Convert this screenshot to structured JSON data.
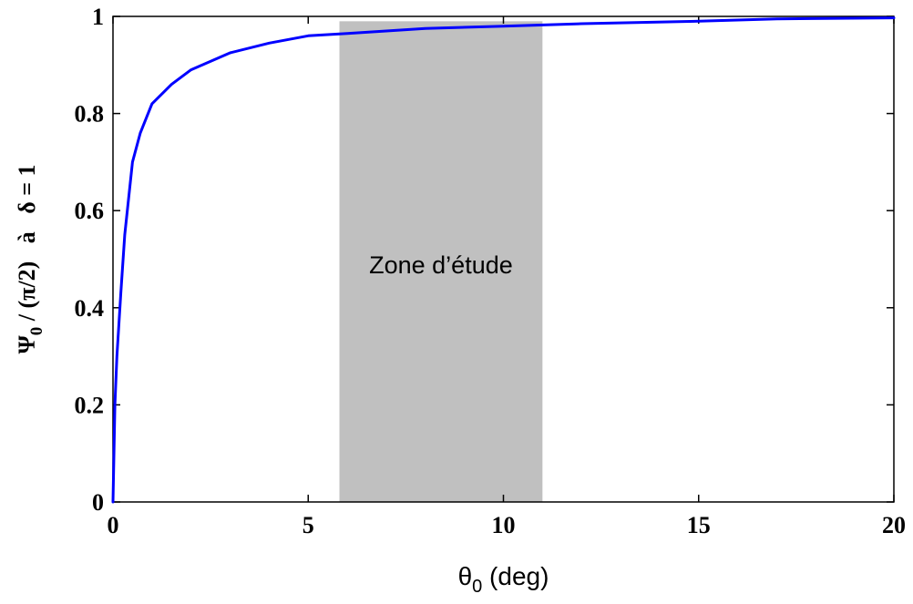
{
  "chart_data": {
    "type": "line",
    "title": "",
    "xlabel": {
      "main": "θ",
      "sub": "0",
      "suffix": " (deg)"
    },
    "ylabel": {
      "main": "Ψ",
      "sub": "0",
      "rest": " / (π/2)   à   δ = 1"
    },
    "xlim": [
      0,
      20
    ],
    "ylim": [
      0,
      1
    ],
    "xticks": [
      0,
      5,
      10,
      15,
      20
    ],
    "xtick_labels": [
      "0",
      "5",
      "10",
      "15",
      "20"
    ],
    "yticks": [
      0,
      0.2,
      0.4,
      0.6,
      0.8,
      1
    ],
    "ytick_labels": [
      "0",
      "0.2",
      "0.4",
      "0.6",
      "0.8",
      "1"
    ],
    "grid": false,
    "series": [
      {
        "color": "#0000ff",
        "x": [
          0,
          0.05,
          0.1,
          0.2,
          0.3,
          0.5,
          0.7,
          1,
          1.5,
          2,
          3,
          4,
          5,
          6,
          8,
          10,
          12,
          15,
          17,
          20
        ],
        "y": [
          0,
          0.2,
          0.3,
          0.43,
          0.55,
          0.7,
          0.76,
          0.82,
          0.86,
          0.89,
          0.925,
          0.945,
          0.96,
          0.965,
          0.975,
          0.98,
          0.985,
          0.99,
          0.995,
          0.997
        ]
      }
    ],
    "annotations": [
      {
        "type": "shaded-band",
        "x_range": [
          5.8,
          11
        ],
        "y_range": [
          0,
          0.99
        ],
        "color": "#c0c0c0",
        "label": "Zone d’étude"
      }
    ]
  }
}
